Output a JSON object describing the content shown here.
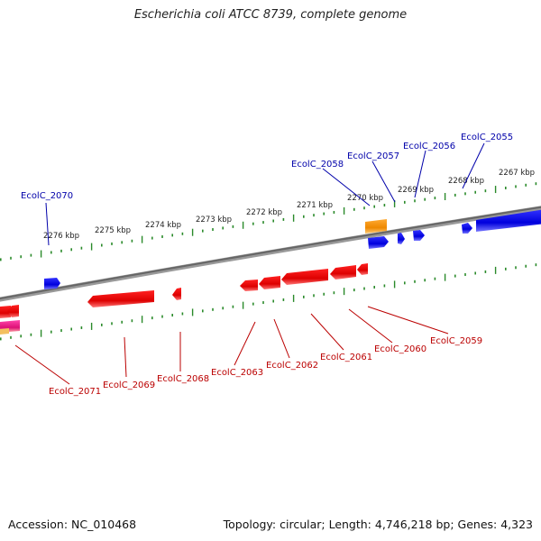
{
  "title": "Escherichia coli ATCC 8739, complete genome",
  "footer": {
    "accession": "Accession: NC_010468",
    "summary": "Topology: circular; Length: 4,746,218 bp; Genes: 4,323"
  },
  "colors": {
    "backbone": "#777777",
    "ticks": "#2a8a2a",
    "forward_gene": "#0000ee",
    "reverse_gene": "#ee0000",
    "orange_feature": "#ee8800",
    "pink_feature": "#ee1177",
    "blue_label": "#0000aa",
    "red_label": "#bb0000"
  },
  "scale_labels": [
    "2276 kbp",
    "2275 kbp",
    "2274 kbp",
    "2273 kbp",
    "2272 kbp",
    "2271 kbp",
    "2270 kbp",
    "2269 kbp",
    "2268 kbp",
    "2267 kbp"
  ],
  "forward_gene_labels": [
    "EcolC_2070",
    "EcolC_2058",
    "EcolC_2057",
    "EcolC_2056",
    "EcolC_2055"
  ],
  "reverse_gene_labels": [
    "EcolC_2071",
    "EcolC_2069",
    "EcolC_2068",
    "EcolC_2063",
    "EcolC_2062",
    "EcolC_2061",
    "EcolC_2060",
    "EcolC_2059"
  ]
}
